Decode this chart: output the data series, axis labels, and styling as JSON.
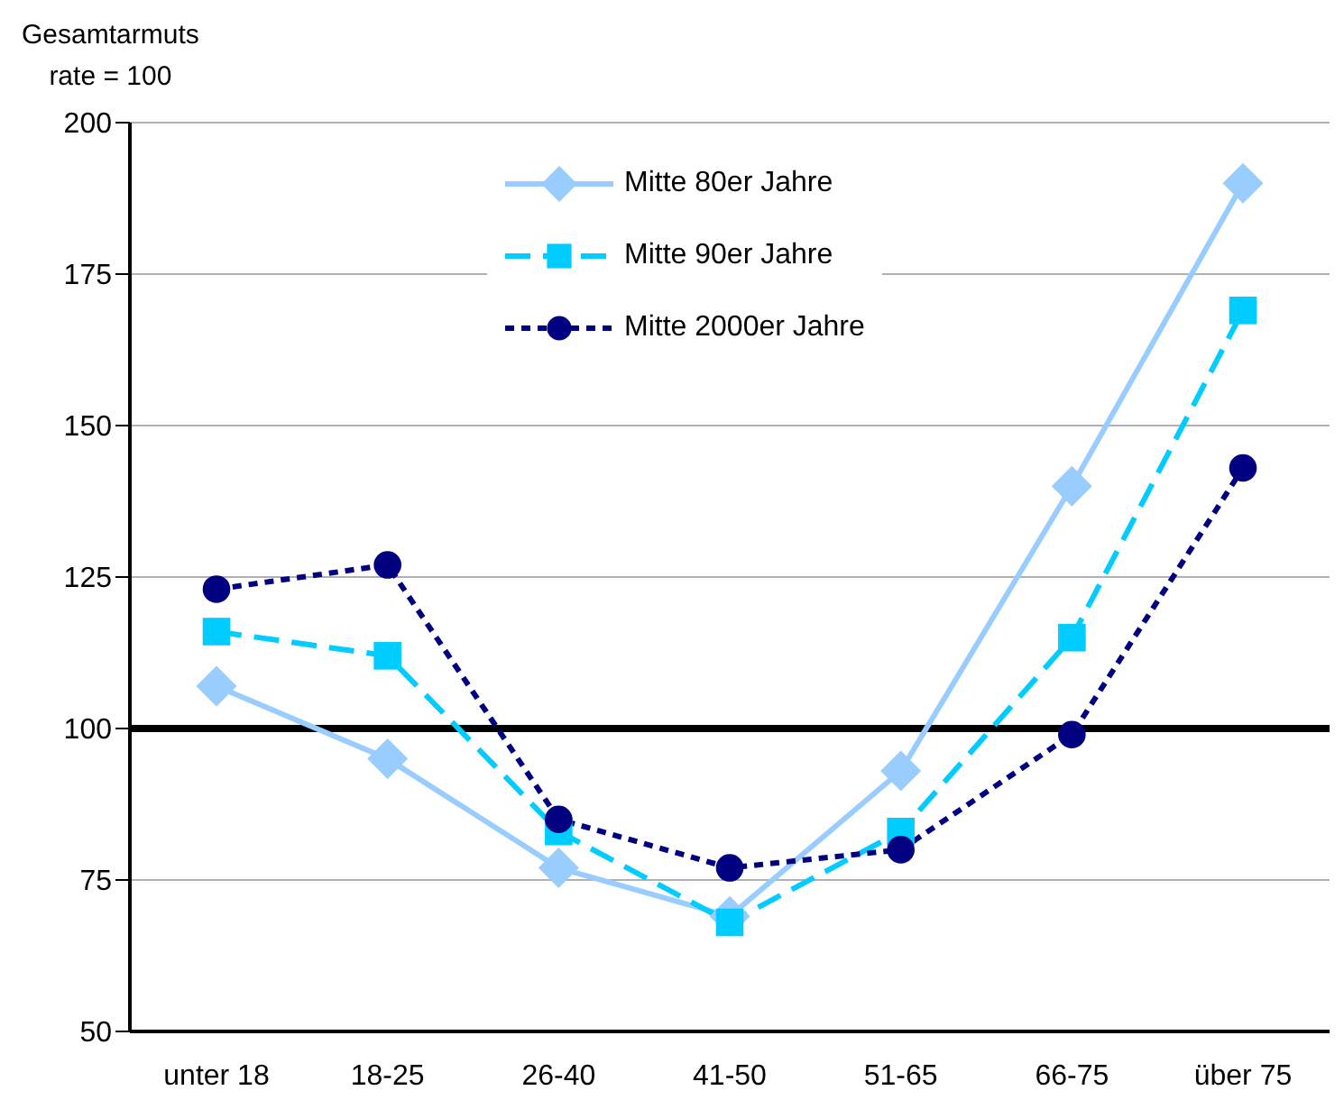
{
  "chart_data": {
    "type": "line",
    "ylabel": "Gesamtarmuts\nrate = 100",
    "categories": [
      "unter 18",
      "18-25",
      "26-40",
      "41-50",
      "51-65",
      "66-75",
      "über 75"
    ],
    "series": [
      {
        "name": "Mitte 80er Jahre",
        "color": "#99ccff",
        "marker": "diamond",
        "line_style": "solid",
        "values": [
          107,
          95,
          77,
          69,
          93,
          140,
          190
        ]
      },
      {
        "name": "Mitte 90er Jahre",
        "color": "#00ccff",
        "marker": "square",
        "line_style": "dashed",
        "values": [
          116,
          112,
          83,
          68,
          83,
          115,
          169
        ]
      },
      {
        "name": "Mitte 2000er Jahre",
        "color": "#000080",
        "marker": "circle",
        "line_style": "dotted",
        "values": [
          123,
          127,
          85,
          77,
          80,
          99,
          143
        ]
      }
    ],
    "ylim": [
      50,
      200
    ],
    "yticks": [
      50,
      75,
      100,
      125,
      150,
      175,
      200
    ],
    "grid": "y",
    "legend": "top",
    "ref_lines": [
      {
        "axis": "y",
        "value": 100,
        "color": "#000000"
      }
    ]
  }
}
